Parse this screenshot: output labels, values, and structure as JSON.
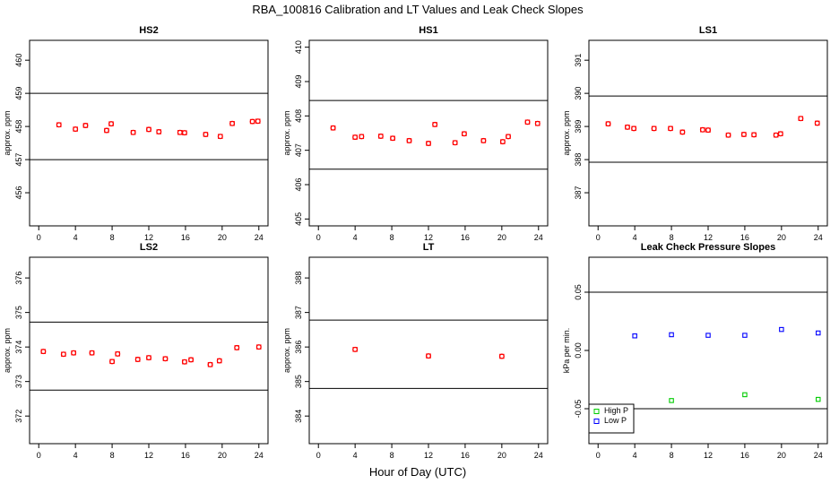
{
  "figure": {
    "title": "RBA_100816  Calibration and LT Values and Leak Check Slopes",
    "xlabel": "Hour of Day (UTC)"
  },
  "chart_data": [
    {
      "type": "scatter",
      "title": "HS2",
      "ylabel": "approx. ppm",
      "xlim": [
        -1,
        25
      ],
      "ylim": [
        455,
        460.6
      ],
      "xticks": [
        0,
        4,
        8,
        12,
        16,
        20,
        24
      ],
      "yticks": [
        456,
        457,
        458,
        459,
        460
      ],
      "hlines": [
        459.0,
        457.0
      ],
      "series": [
        {
          "color": "#ff0000",
          "marker": "circle",
          "x": [
            2.2,
            4.0,
            5.1,
            7.4,
            7.9,
            10.3,
            12.0,
            13.1,
            15.4,
            15.9,
            18.2,
            19.8,
            21.1,
            23.3,
            23.9
          ],
          "y": [
            458.05,
            457.92,
            458.03,
            457.88,
            458.08,
            457.82,
            457.91,
            457.84,
            457.82,
            457.81,
            457.76,
            457.7,
            458.09,
            458.15,
            458.16
          ]
        },
        {
          "color": "#ff0000",
          "marker": "square",
          "x": [
            2.2,
            4.0,
            5.1,
            7.4,
            7.9,
            10.3,
            12.0,
            13.1,
            15.4,
            15.9,
            18.2,
            19.8,
            21.1,
            23.3,
            23.9
          ],
          "y": [
            458.05,
            457.92,
            458.03,
            457.88,
            458.08,
            457.82,
            457.91,
            457.84,
            457.82,
            457.81,
            457.76,
            457.7,
            458.09,
            458.15,
            458.16
          ]
        }
      ]
    },
    {
      "type": "scatter",
      "title": "HS1",
      "ylabel": "approx. ppm",
      "xlim": [
        -1,
        25
      ],
      "ylim": [
        404.8,
        410.2
      ],
      "xticks": [
        0,
        4,
        8,
        12,
        16,
        20,
        24
      ],
      "yticks": [
        405,
        406,
        407,
        408,
        409,
        410
      ],
      "hlines": [
        408.45,
        406.45
      ],
      "series": [
        {
          "color": "#ff0000",
          "marker": "circle",
          "x": [
            1.6,
            4.0,
            4.7,
            6.8,
            8.1,
            9.9,
            12.0,
            12.7,
            14.9,
            15.9,
            18.0,
            20.1,
            20.7,
            22.8,
            23.9
          ],
          "y": [
            407.65,
            407.38,
            407.4,
            407.41,
            407.35,
            407.28,
            407.2,
            407.75,
            407.22,
            407.48,
            407.28,
            407.25,
            407.4,
            407.82,
            407.78
          ]
        },
        {
          "color": "#ff0000",
          "marker": "square",
          "x": [
            1.6,
            4.0,
            4.7,
            6.8,
            8.1,
            9.9,
            12.0,
            12.7,
            14.9,
            15.9,
            18.0,
            20.1,
            20.7,
            22.8,
            23.9
          ],
          "y": [
            407.65,
            407.38,
            407.4,
            407.41,
            407.35,
            407.28,
            407.2,
            407.75,
            407.22,
            407.48,
            407.28,
            407.25,
            407.4,
            407.82,
            407.78
          ]
        }
      ]
    },
    {
      "type": "scatter",
      "title": "LS1",
      "ylabel": "approx. ppm",
      "xlim": [
        -1,
        25
      ],
      "ylim": [
        386.0,
        391.6
      ],
      "xticks": [
        0,
        4,
        8,
        12,
        16,
        20,
        24
      ],
      "yticks": [
        387,
        388,
        389,
        390,
        391
      ],
      "hlines": [
        389.92,
        387.92
      ],
      "series": [
        {
          "color": "#ff0000",
          "marker": "circle",
          "x": [
            1.1,
            3.2,
            3.9,
            6.1,
            7.9,
            9.2,
            11.4,
            12.0,
            14.2,
            15.9,
            17.0,
            19.4,
            19.9,
            22.1,
            23.9
          ],
          "y": [
            389.08,
            388.98,
            388.94,
            388.94,
            388.94,
            388.83,
            388.9,
            388.89,
            388.74,
            388.76,
            388.75,
            388.74,
            388.78,
            389.24,
            389.1
          ]
        },
        {
          "color": "#ff0000",
          "marker": "square",
          "x": [
            1.1,
            3.2,
            3.9,
            6.1,
            7.9,
            9.2,
            11.4,
            12.0,
            14.2,
            15.9,
            17.0,
            19.4,
            19.9,
            22.1,
            23.9
          ],
          "y": [
            389.08,
            388.98,
            388.94,
            388.94,
            388.94,
            388.83,
            388.9,
            388.89,
            388.74,
            388.76,
            388.75,
            388.74,
            388.78,
            389.24,
            389.1
          ]
        }
      ]
    },
    {
      "type": "scatter",
      "title": "LS2",
      "ylabel": "approx. ppm",
      "xlim": [
        -1,
        25
      ],
      "ylim": [
        371.2,
        376.6
      ],
      "xticks": [
        0,
        4,
        8,
        12,
        16,
        20,
        24
      ],
      "yticks": [
        372,
        373,
        374,
        375,
        376
      ],
      "hlines": [
        374.72,
        372.75
      ],
      "series": [
        {
          "color": "#ff0000",
          "marker": "circle",
          "x": [
            0.5,
            2.7,
            3.8,
            5.8,
            8.0,
            8.6,
            10.8,
            12.0,
            13.8,
            15.9,
            16.6,
            18.7,
            19.7,
            21.6,
            24.0
          ],
          "y": [
            373.87,
            373.79,
            373.83,
            373.83,
            373.58,
            373.8,
            373.64,
            373.69,
            373.66,
            373.57,
            373.63,
            373.49,
            373.6,
            373.98,
            374.0
          ]
        },
        {
          "color": "#ff0000",
          "marker": "square",
          "x": [
            0.5,
            2.7,
            3.8,
            5.8,
            8.0,
            8.6,
            10.8,
            12.0,
            13.8,
            15.9,
            16.6,
            18.7,
            19.7,
            21.6,
            24.0
          ],
          "y": [
            373.87,
            373.79,
            373.83,
            373.83,
            373.58,
            373.8,
            373.64,
            373.69,
            373.66,
            373.57,
            373.63,
            373.49,
            373.6,
            373.98,
            374.0
          ]
        }
      ]
    },
    {
      "type": "scatter",
      "title": "LT",
      "ylabel": "approx. ppm",
      "xlim": [
        -1,
        25
      ],
      "ylim": [
        383.2,
        388.6
      ],
      "xticks": [
        0,
        4,
        8,
        12,
        16,
        20,
        24
      ],
      "yticks": [
        384,
        385,
        386,
        387,
        388
      ],
      "hlines": [
        386.78,
        384.8
      ],
      "series": [
        {
          "color": "#ff0000",
          "marker": "circle",
          "x": [
            4.0,
            12.0,
            20.0
          ],
          "y": [
            385.93,
            385.74,
            385.73
          ]
        },
        {
          "color": "#ff0000",
          "marker": "square",
          "x": [
            4.0,
            12.0,
            20.0
          ],
          "y": [
            385.93,
            385.74,
            385.73
          ]
        }
      ]
    },
    {
      "type": "scatter",
      "title": "Leak Check Pressure Slopes",
      "ylabel": "kPa per min.",
      "xlim": [
        -1,
        25
      ],
      "ylim": [
        -0.08,
        0.08
      ],
      "xticks": [
        0,
        4,
        8,
        12,
        16,
        20,
        24
      ],
      "yticks": [
        -0.05,
        0.0,
        0.05
      ],
      "ytick_labels": [
        "-0.05",
        "0.00",
        "0.05"
      ],
      "hlines": [
        0.05,
        -0.05
      ],
      "legend": {
        "position": "bottom-left"
      },
      "series": [
        {
          "name": "High P",
          "color": "#00cc00",
          "marker": "square",
          "x": [
            8.0,
            16.0,
            24.0
          ],
          "y": [
            -0.043,
            -0.038,
            -0.042
          ]
        },
        {
          "name": "Low P",
          "color": "#0000ff",
          "marker": "square",
          "x": [
            4.0,
            8.0,
            12.0,
            16.0,
            20.0,
            24.0
          ],
          "y": [
            0.0125,
            0.0135,
            0.013,
            0.013,
            0.018,
            0.015
          ]
        }
      ]
    }
  ]
}
